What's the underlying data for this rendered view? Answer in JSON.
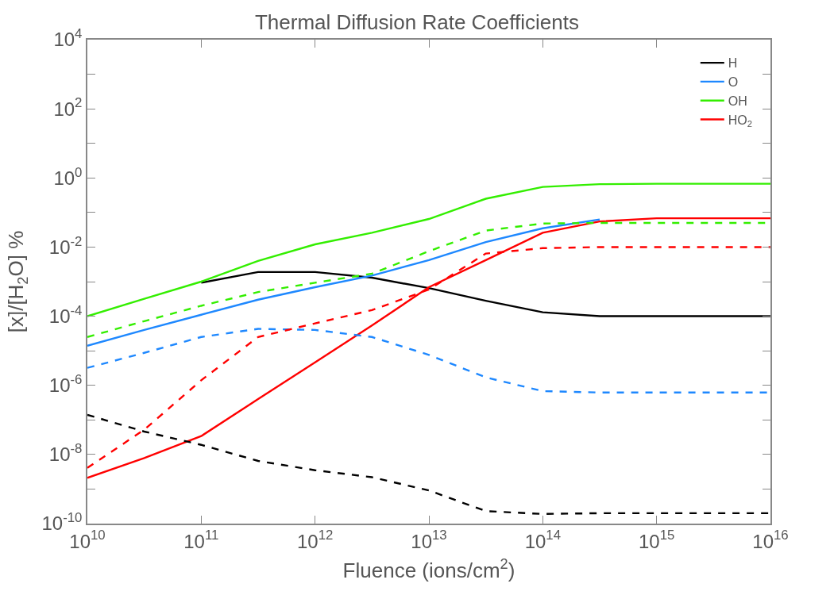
{
  "chart_data": {
    "type": "line",
    "title": "Thermal Diffusion Rate Coefficients",
    "xlabel": "Fluence (ions/cm$^{2}$)",
    "ylabel": "[x]/[H$_{2}$O] %",
    "log": "xy",
    "legend": "top right",
    "marker": "none",
    "xlim": [
      10000000000.0,
      1e+16
    ],
    "ylim": [
      1e-10,
      10000.0
    ],
    "xticks": [
      {
        "value": 10000000000.0,
        "label": "10$^{10}$"
      },
      {
        "value": 100000000000.0,
        "label": "10$^{11}$"
      },
      {
        "value": 1000000000000.0,
        "label": "10$^{12}$"
      },
      {
        "value": 10000000000000.0,
        "label": "10$^{13}$"
      },
      {
        "value": 100000000000000.0,
        "label": "10$^{14}$"
      },
      {
        "value": 1000000000000000.0,
        "label": "10$^{15}$"
      },
      {
        "value": 1e+16,
        "label": "10$^{16}$"
      }
    ],
    "yticks": [
      {
        "value": 1e-10,
        "label": "10$^{-10}$"
      },
      {
        "value": 1e-09,
        "label": null
      },
      {
        "value": 1e-08,
        "label": "10$^{-8}$"
      },
      {
        "value": 1e-07,
        "label": null
      },
      {
        "value": 1e-06,
        "label": "10$^{-6}$"
      },
      {
        "value": 1e-05,
        "label": null
      },
      {
        "value": 0.0001,
        "label": "10$^{-4}$"
      },
      {
        "value": 0.001,
        "label": null
      },
      {
        "value": 0.01,
        "label": "10$^{-2}$"
      },
      {
        "value": 0.1,
        "label": null
      },
      {
        "value": 1,
        "label": "10$^{0}$"
      },
      {
        "value": 10,
        "label": null
      },
      {
        "value": 100,
        "label": "10$^{2}$"
      },
      {
        "value": 1000,
        "label": null
      },
      {
        "value": 10000,
        "label": "10$^{4}$"
      }
    ],
    "x": [
      10000000000.0,
      31600000000.0,
      100000000000.0,
      316000000000.0,
      1000000000000.0,
      3160000000000.0,
      10000000000000.0,
      31600000000000.0,
      100000000000000.0,
      316000000000000.0,
      1000000000000000.0,
      1e+16
    ],
    "series": [
      {
        "name": "H",
        "color": "#000000",
        "line_style": "solid",
        "values": [
          null,
          null,
          0.00093,
          0.0019,
          0.0019,
          0.0013,
          0.00065,
          0.00028,
          0.00013,
          0.0001,
          0.0001,
          0.0001
        ]
      },
      {
        "name": "O",
        "color": "#1e88ff",
        "line_style": "solid",
        "values": [
          1.4e-05,
          4e-05,
          0.00011,
          0.0003,
          0.00069,
          0.0015,
          0.0042,
          0.014,
          0.035,
          0.063,
          null,
          null
        ]
      },
      {
        "name": "OH",
        "color": "#33ee00",
        "line_style": "solid",
        "values": [
          0.0001,
          0.00032,
          0.001,
          0.004,
          0.012,
          0.026,
          0.065,
          0.25,
          0.55,
          0.66,
          0.68,
          0.68
        ]
      },
      {
        "name": "HO$_{2}$",
        "color": "#ff0000",
        "line_style": "solid",
        "values": [
          2.1e-09,
          7.9e-09,
          3.4e-08,
          4e-07,
          4.6e-06,
          5.4e-05,
          0.00069,
          0.0042,
          0.026,
          0.055,
          0.068,
          0.068
        ]
      },
      {
        "color": "#000000",
        "line_style": "dashed",
        "values": [
          1.4e-07,
          4.6e-08,
          1.9e-08,
          6.5e-09,
          3.5e-09,
          2.2e-09,
          9.1e-10,
          2.3e-10,
          1.9e-10,
          2e-10,
          2e-10,
          2e-10
        ]
      },
      {
        "color": "#1e88ff",
        "line_style": "dashed",
        "values": [
          3.2e-06,
          8.7e-06,
          2.5e-05,
          4.3e-05,
          4e-05,
          2.5e-05,
          7.6e-06,
          1.7e-06,
          6.8e-07,
          6.2e-07,
          6.2e-07,
          6.2e-07
        ]
      },
      {
        "color": "#33ee00",
        "line_style": "dashed",
        "values": [
          2.5e-05,
          7.2e-05,
          0.0002,
          0.0005,
          0.00093,
          0.0017,
          0.0076,
          0.03,
          0.048,
          0.05,
          0.05,
          0.05
        ]
      },
      {
        "color": "#ff0000",
        "line_style": "dashed",
        "values": [
          4.1e-09,
          5.2e-08,
          1.4e-06,
          2.5e-05,
          6.2e-05,
          0.00015,
          0.00059,
          0.0065,
          0.0093,
          0.01,
          0.01,
          0.01
        ]
      }
    ]
  }
}
